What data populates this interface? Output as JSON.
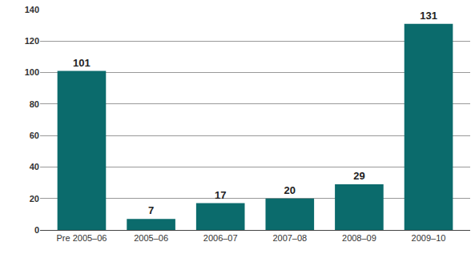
{
  "chart_data": {
    "type": "bar",
    "categories": [
      "Pre 2005–06",
      "2005–06",
      "2006–07",
      "2007–08",
      "2008–09",
      "2009–10"
    ],
    "values": [
      101,
      7,
      17,
      20,
      29,
      131
    ],
    "color": "#0b6b6c",
    "ylim": [
      0,
      140
    ],
    "yticks": [
      0,
      20,
      40,
      60,
      80,
      100,
      120,
      140
    ],
    "grid": true,
    "data_labels": true
  }
}
